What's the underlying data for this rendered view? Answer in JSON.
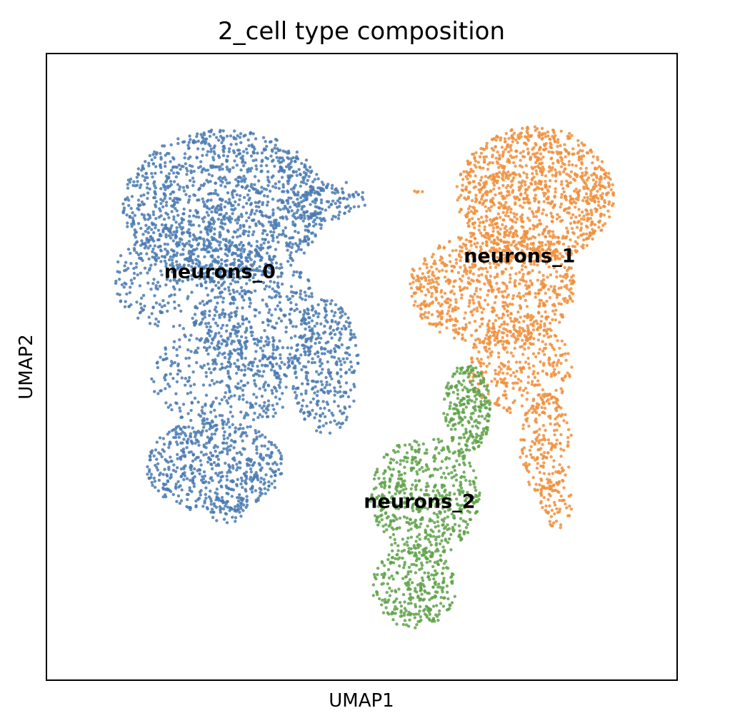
{
  "chart_data": {
    "type": "scatter",
    "title": "2_cell type composition",
    "xlabel": "UMAP1",
    "ylabel": "UMAP2",
    "xticks": [],
    "yticks": [],
    "grid": false,
    "legend": "none (labels drawn on clusters)",
    "xlim": [
      -1,
      11
    ],
    "ylim": [
      -1,
      11
    ],
    "series": [
      {
        "name": "neurons_0",
        "color": "#4a7ab0",
        "label_at": [
          2.3,
          6.7
        ],
        "blobs": [
          {
            "cx": 2.4,
            "cy": 8.1,
            "rx": 1.95,
            "ry": 1.45,
            "n": 1300
          },
          {
            "cx": 1.6,
            "cy": 6.7,
            "rx": 1.35,
            "ry": 1.0,
            "n": 320
          },
          {
            "cx": 3.0,
            "cy": 6.0,
            "rx": 1.2,
            "ry": 1.2,
            "n": 380
          },
          {
            "cx": 2.4,
            "cy": 4.8,
            "rx": 1.4,
            "ry": 1.0,
            "n": 380
          },
          {
            "cx": 2.2,
            "cy": 3.1,
            "rx": 1.3,
            "ry": 0.9,
            "n": 560
          },
          {
            "cx": 2.4,
            "cy": 2.3,
            "rx": 0.45,
            "ry": 0.3,
            "n": 40
          },
          {
            "cx": 4.3,
            "cy": 5.0,
            "rx": 0.65,
            "ry": 1.3,
            "n": 330
          },
          {
            "cx": 4.3,
            "cy": 8.2,
            "rx": 0.8,
            "ry": 0.4,
            "n": 110
          }
        ]
      },
      {
        "name": "neurons_1",
        "color": "#ef8f3c",
        "label_at": [
          8.0,
          7.0
        ],
        "blobs": [
          {
            "cx": 8.3,
            "cy": 8.3,
            "rx": 1.5,
            "ry": 1.3,
            "n": 1100
          },
          {
            "cx": 7.5,
            "cy": 6.5,
            "rx": 1.6,
            "ry": 1.1,
            "n": 800
          },
          {
            "cx": 8.0,
            "cy": 5.0,
            "rx": 1.0,
            "ry": 0.9,
            "n": 320
          },
          {
            "cx": 8.5,
            "cy": 3.5,
            "rx": 0.5,
            "ry": 1.0,
            "n": 200
          },
          {
            "cx": 8.7,
            "cy": 2.4,
            "rx": 0.3,
            "ry": 0.5,
            "n": 60
          },
          {
            "cx": 6.1,
            "cy": 8.4,
            "rx": 0.1,
            "ry": 0.15,
            "n": 4
          },
          {
            "cx": 6.0,
            "cy": 6.8,
            "rx": 0.1,
            "ry": 0.15,
            "n": 3
          }
        ]
      },
      {
        "name": "neurons_2",
        "color": "#5fa24a",
        "label_at": [
          6.1,
          2.3
        ],
        "blobs": [
          {
            "cx": 6.2,
            "cy": 2.5,
            "rx": 1.05,
            "ry": 1.15,
            "n": 550
          },
          {
            "cx": 6.0,
            "cy": 0.8,
            "rx": 0.8,
            "ry": 0.8,
            "n": 300
          },
          {
            "cx": 7.0,
            "cy": 4.2,
            "rx": 0.45,
            "ry": 0.85,
            "n": 260
          }
        ]
      }
    ]
  }
}
